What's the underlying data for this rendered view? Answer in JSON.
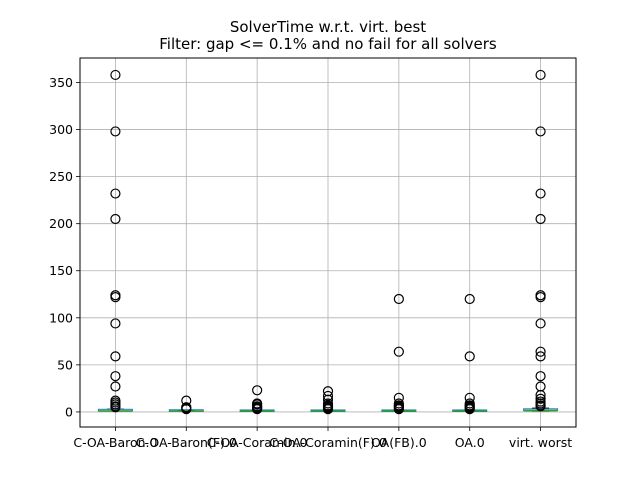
{
  "chart_data": {
    "type": "boxplot",
    "title": "SolverTime w.r.t. virt. best",
    "subtitle": "Filter: gap <= 0.1% and no fail for all solvers",
    "xlabel": "",
    "ylabel": "",
    "ylim": [
      -16,
      376
    ],
    "yticks": [
      0,
      50,
      100,
      150,
      200,
      250,
      300,
      350
    ],
    "grid": true,
    "colors": {
      "box": "#1f77b4",
      "median": "#2ca02c",
      "grid": "#b0b0b0",
      "flier": "#000000"
    },
    "categories": [
      "C-OA-Baron.0",
      "C-OA-Baron(F).0",
      "C-OA-Coramin.0",
      "C-OA-Coramin(F).0",
      "OA(FB).0",
      "OA.0",
      "virt. worst"
    ],
    "boxes": [
      {
        "category": "C-OA-Baron.0",
        "whislo": 1.0,
        "q1": 1.0,
        "med": 1.0,
        "q3": 2.0,
        "whishi": 3.0,
        "fliers": [
          358,
          298,
          232,
          205,
          124,
          122,
          94,
          59,
          38,
          27,
          12,
          10,
          8,
          6,
          5
        ]
      },
      {
        "category": "C-OA-Baron(F).0",
        "whislo": 1.0,
        "q1": 1.0,
        "med": 1.0,
        "q3": 1.5,
        "whishi": 2.0,
        "fliers": [
          12,
          5,
          4,
          3
        ]
      },
      {
        "category": "C-OA-Coramin.0",
        "whislo": 1.0,
        "q1": 1.0,
        "med": 1.0,
        "q3": 1.3,
        "whishi": 2.0,
        "fliers": [
          23,
          9,
          8,
          6,
          5,
          4,
          3
        ]
      },
      {
        "category": "C-OA-Coramin(F).0",
        "whislo": 1.0,
        "q1": 1.0,
        "med": 1.0,
        "q3": 1.3,
        "whishi": 2.0,
        "fliers": [
          22,
          17,
          13,
          9,
          7,
          6,
          5,
          4,
          3
        ]
      },
      {
        "category": "OA(FB).0",
        "whislo": 1.0,
        "q1": 1.0,
        "med": 1.0,
        "q3": 1.3,
        "whishi": 2.0,
        "fliers": [
          120,
          64,
          15,
          9,
          7,
          6,
          5,
          4,
          3
        ]
      },
      {
        "category": "OA.0",
        "whislo": 1.0,
        "q1": 1.0,
        "med": 1.0,
        "q3": 1.3,
        "whishi": 2.0,
        "fliers": [
          120,
          59,
          15,
          9,
          7,
          6,
          5,
          4,
          3
        ]
      },
      {
        "category": "virt. worst",
        "whislo": 1.0,
        "q1": 1.0,
        "med": 1.5,
        "q3": 2.5,
        "whishi": 4.0,
        "fliers": [
          358,
          298,
          232,
          205,
          124,
          122,
          94,
          64,
          59,
          38,
          27,
          18,
          14,
          11,
          9,
          7,
          6
        ]
      }
    ]
  }
}
